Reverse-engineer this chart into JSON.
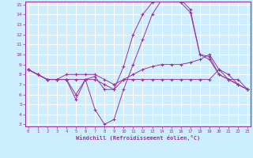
{
  "xlabel": "Windchill (Refroidissement éolien,°C)",
  "bg_color": "#cceeff",
  "grid_color": "#ffffff",
  "line_color": "#993399",
  "xmin": 0,
  "xmax": 23,
  "ymin": 3,
  "ymax": 15,
  "series": [
    [
      8.5,
      8.0,
      7.5,
      7.5,
      7.5,
      5.5,
      7.5,
      7.8,
      6.5,
      6.5,
      8.8,
      12.0,
      14.0,
      15.2,
      15.5,
      15.5,
      15.2,
      14.2,
      10.0,
      9.8,
      8.0,
      7.5,
      7.0,
      6.5
    ],
    [
      8.5,
      8.0,
      7.5,
      7.5,
      7.5,
      7.5,
      7.5,
      7.5,
      7.0,
      6.5,
      7.5,
      8.0,
      8.5,
      8.8,
      9.0,
      9.0,
      9.0,
      9.2,
      9.5,
      10.0,
      8.5,
      8.0,
      7.0,
      6.5
    ],
    [
      8.5,
      8.0,
      7.5,
      7.5,
      8.0,
      8.0,
      8.0,
      8.0,
      7.5,
      7.0,
      7.5,
      7.5,
      7.5,
      7.5,
      7.5,
      7.5,
      7.5,
      7.5,
      7.5,
      7.5,
      8.5,
      7.5,
      7.0,
      6.5
    ],
    [
      8.5,
      8.0,
      7.5,
      7.5,
      7.5,
      6.0,
      7.5,
      4.5,
      3.0,
      3.5,
      6.5,
      9.0,
      11.5,
      14.0,
      15.5,
      15.5,
      15.5,
      14.5,
      10.0,
      9.5,
      8.0,
      7.5,
      7.5,
      6.5
    ]
  ]
}
